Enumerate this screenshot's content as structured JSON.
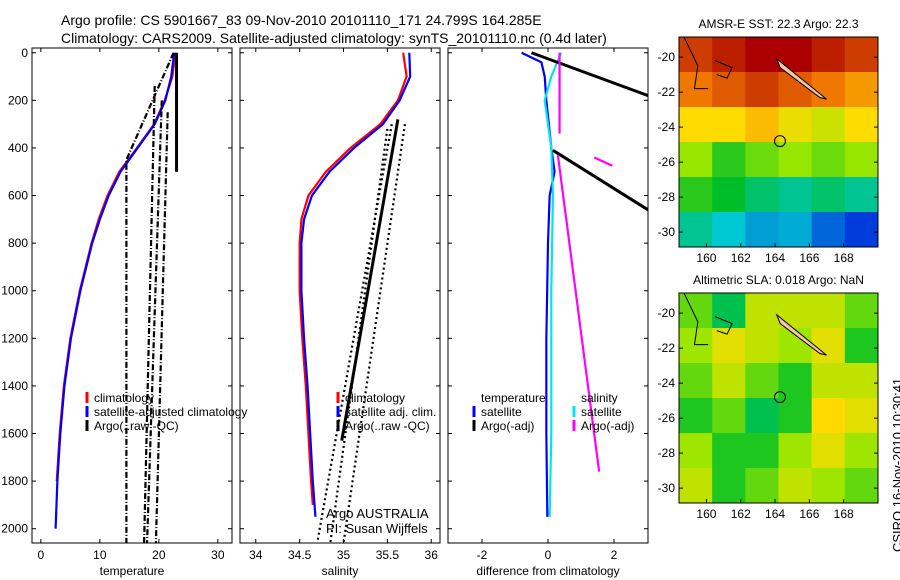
{
  "title": {
    "line1": "Argo profile: CS 5901667_83 09-Nov-2010 20101110_171 24.799S 164.285E",
    "line2": "Climatology: CARS2009. Satellite-adjusted climatology: synTS_20101110.nc (0.4d later)"
  },
  "credit": {
    "argo": "Argo AUSTRALIA",
    "pi": "PI: Susan Wijffels",
    "stamp": "CSIRO 16-Nov-2010 10:30:41"
  },
  "chart_data": [
    {
      "type": "line",
      "id": "temperature",
      "xlabel": "temperature",
      "ylabel": "",
      "xlim": [
        -1.5,
        32.4
      ],
      "ylim": [
        2060,
        -20
      ],
      "xticks": [
        0,
        10,
        20,
        30
      ],
      "yticks": [
        0,
        200,
        400,
        600,
        800,
        1000,
        1200,
        1400,
        1600,
        1800,
        2000
      ],
      "legend": [
        "climatology",
        "satellite-adjusted climatology",
        "Argo(..raw -QC)"
      ],
      "series": [
        {
          "name": "climatology",
          "color": "#ff0000",
          "depth": [
            0,
            100,
            200,
            300,
            400,
            500,
            600,
            700,
            800,
            1000,
            1200,
            1400,
            1600,
            1800
          ],
          "values": [
            22.8,
            22.3,
            21,
            19.2,
            16.3,
            13.3,
            11.3,
            9.8,
            8.6,
            6.6,
            5,
            3.9,
            3.2,
            2.7
          ]
        },
        {
          "name": "satellite-adjusted climatology",
          "color": "#0000ff",
          "depth": [
            0,
            100,
            200,
            300,
            400,
            500,
            600,
            700,
            800,
            1000,
            1200,
            1400,
            1600,
            1800,
            2000
          ],
          "values": [
            22.6,
            22.1,
            21.1,
            19.3,
            16.4,
            13.5,
            11.5,
            10,
            8.7,
            6.7,
            5.1,
            4,
            3.3,
            2.8,
            2.5
          ]
        },
        {
          "name": "Argo(..raw -QC)",
          "color": "#000000",
          "dash": "6 2 1 2",
          "depth": [
            0,
            450,
            2060
          ],
          "values": [
            22.5,
            14.5,
            14.5
          ]
        },
        {
          "name": "Argo(..raw -QC)",
          "color": "#000000",
          "dash": "6 2 1 2",
          "depth": [
            140,
            2060
          ],
          "values": [
            19.3,
            17.5
          ]
        },
        {
          "name": "Argo(..raw -QC)",
          "color": "#000000",
          "dash": "6 2 1 2",
          "depth": [
            200,
            2060
          ],
          "values": [
            20.5,
            18
          ]
        },
        {
          "name": "Argo(..raw -QC)",
          "color": "#000000",
          "dash": "6 2 1 2",
          "depth": [
            250,
            2060
          ],
          "values": [
            21.5,
            19.5
          ]
        },
        {
          "name": "Argo(..raw -QC)",
          "color": "#000000",
          "dash": "",
          "depth": [
            0,
            500
          ],
          "values": [
            23,
            23
          ]
        }
      ]
    },
    {
      "type": "line",
      "id": "salinity",
      "xlabel": "salinity",
      "xlim": [
        33.82,
        36.1
      ],
      "ylim": [
        2060,
        -20
      ],
      "xticks": [
        34,
        34.5,
        35,
        35.5,
        36
      ],
      "yticks": [
        0,
        200,
        400,
        600,
        800,
        1000,
        1200,
        1400,
        1600,
        1800,
        2000
      ],
      "legend": [
        "climatology",
        "satellite adj. clim.",
        "Argo(..raw -QC)"
      ],
      "series": [
        {
          "name": "climatology",
          "color": "#ff0000",
          "depth": [
            0,
            100,
            200,
            300,
            400,
            500,
            600,
            700,
            800,
            1000,
            1200,
            1400,
            1600,
            1800,
            1900
          ],
          "values": [
            35.68,
            35.72,
            35.62,
            35.42,
            35.08,
            34.8,
            34.6,
            34.52,
            34.5,
            34.5,
            34.53,
            34.57,
            34.6,
            34.63,
            34.65
          ]
        },
        {
          "name": "satellite adj. clim.",
          "color": "#0000ff",
          "depth": [
            0,
            100,
            200,
            300,
            400,
            500,
            600,
            700,
            800,
            1000,
            1200,
            1400,
            1600,
            1800,
            1950
          ],
          "values": [
            35.75,
            35.76,
            35.64,
            35.45,
            35.12,
            34.84,
            34.64,
            34.55,
            34.52,
            34.52,
            34.55,
            34.59,
            34.62,
            34.65,
            34.68
          ]
        },
        {
          "name": "Argo(..raw -QC)",
          "color": "#000000",
          "dash": "",
          "depth": [
            280,
            1630
          ],
          "values": [
            35.62,
            34.98
          ]
        },
        {
          "name": "Argo(..raw -QC)",
          "color": "#000000",
          "dash": "2 3",
          "depth": [
            300,
            2060
          ],
          "values": [
            35.55,
            34.7
          ]
        },
        {
          "name": "Argo(..raw -QC)",
          "color": "#000000",
          "dash": "2 3",
          "depth": [
            320,
            2060
          ],
          "values": [
            35.5,
            34.85
          ]
        },
        {
          "name": "Argo(..raw -QC)",
          "color": "#000000",
          "dash": "2 3",
          "depth": [
            300,
            2060
          ],
          "values": [
            35.7,
            35.0
          ]
        }
      ]
    },
    {
      "type": "line",
      "id": "difference",
      "xlabel": "difference from climatology",
      "xlim": [
        -3.03,
        3.03
      ],
      "ylim": [
        2060,
        -20
      ],
      "xticks": [
        -2,
        0,
        2
      ],
      "yticks": [
        0,
        200,
        400,
        600,
        800,
        1000,
        1200,
        1400,
        1600,
        1800,
        2000
      ],
      "legend_headers": [
        "temperature",
        "salinity"
      ],
      "legend": [
        "satellite",
        "Argo(-adj)",
        "satellite",
        "Argo(-adj)"
      ],
      "series": [
        {
          "name": "temperature satellite",
          "color": "#0000ff",
          "depth": [
            0,
            40,
            100,
            200,
            400,
            500,
            600,
            800,
            1200,
            1600,
            1950
          ],
          "values": [
            -0.8,
            -0.2,
            -0.1,
            -0.05,
            0.1,
            0.2,
            0.05,
            0,
            -0.05,
            -0.05,
            -0.02
          ]
        },
        {
          "name": "salinity satellite",
          "color": "#00e5ee",
          "depth": [
            0,
            100,
            200,
            300,
            400,
            600,
            1000,
            1600,
            1950
          ],
          "values": [
            0.4,
            0.1,
            -0.1,
            0,
            0.1,
            0.15,
            0.1,
            0.1,
            0.05
          ]
        },
        {
          "name": "temperature Argo(-adj)",
          "color": "#000000",
          "depth": [
            0,
            180
          ],
          "values": [
            -0.5,
            3.03
          ]
        },
        {
          "name": "temperature Argo(-adj)",
          "color": "#000000",
          "depth": [
            410,
            660
          ],
          "values": [
            0.15,
            3.03
          ]
        },
        {
          "name": "salinity Argo(-adj)",
          "color": "#ff00ff",
          "depth": [
            0,
            340
          ],
          "values": [
            0.35,
            0.35
          ]
        },
        {
          "name": "salinity Argo(-adj)",
          "color": "#ff00ff",
          "depth": [
            430,
            1760
          ],
          "values": [
            0.3,
            1.55
          ]
        },
        {
          "name": "salinity Argo(-adj)",
          "color": "#ff00ff",
          "depth": [
            440,
            475
          ],
          "values": [
            1.4,
            1.95
          ]
        }
      ]
    },
    {
      "type": "heatmap",
      "id": "sst",
      "title": "AMSR-E SST: 22.3 Argo: 22.3",
      "xlim": [
        158.4,
        170
      ],
      "ylim": [
        -30.85,
        -18.85
      ],
      "xticks": [
        160,
        162,
        164,
        166,
        168
      ],
      "yticks": [
        -20,
        -22,
        -24,
        -26,
        -28,
        -30
      ],
      "float_position": [
        164.285,
        -24.799
      ],
      "grid": [
        [
          25.5,
          26,
          26.5,
          26.5,
          26,
          25.5
        ],
        [
          24.5,
          25,
          25.5,
          25,
          24.5,
          24
        ],
        [
          23,
          23,
          23.5,
          22.8,
          22.5,
          23
        ],
        [
          22,
          21.5,
          21.8,
          22,
          21.8,
          22
        ],
        [
          21.5,
          21.3,
          21,
          20.8,
          21,
          20.8
        ],
        [
          20.8,
          20.5,
          20.2,
          20.3,
          19.8,
          19.5
        ]
      ]
    },
    {
      "type": "heatmap",
      "id": "sla",
      "title": "Altimetric SLA: 0.018 Argo: NaN",
      "xlim": [
        158.4,
        170
      ],
      "ylim": [
        -30.85,
        -18.85
      ],
      "xticks": [
        160,
        162,
        164,
        166,
        168
      ],
      "yticks": [
        -20,
        -22,
        -24,
        -26,
        -28,
        -30
      ],
      "float_position": [
        164.285,
        -24.799
      ],
      "grid": [
        [
          0.3,
          0.1,
          0.5,
          0.5,
          0.5,
          0.3
        ],
        [
          0.4,
          0.6,
          0.5,
          0.4,
          0.6,
          0.2
        ],
        [
          0.3,
          0.5,
          0.3,
          0.2,
          0.5,
          0.5
        ],
        [
          0.2,
          0.3,
          0.1,
          0.2,
          0.7,
          0.6
        ],
        [
          0.4,
          0.2,
          0.2,
          0.4,
          0.6,
          0.4
        ],
        [
          0.5,
          0.2,
          0.3,
          0.5,
          0.4,
          0.3
        ]
      ]
    }
  ]
}
